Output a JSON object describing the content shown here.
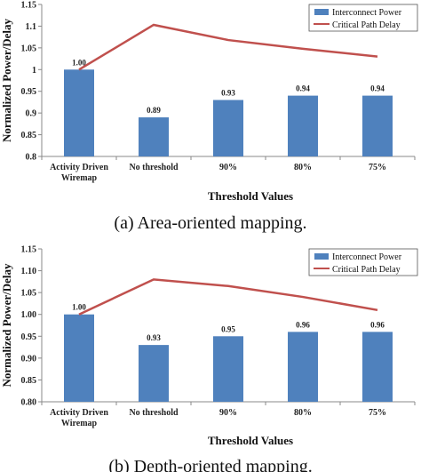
{
  "chart_data": [
    {
      "type": "bar",
      "caption": "(a) Area-oriented mapping.",
      "categories": [
        [
          "Activity Driven",
          "Wiremap"
        ],
        [
          "No threshold"
        ],
        [
          "90%"
        ],
        [
          "80%"
        ],
        [
          "75%"
        ]
      ],
      "series": [
        {
          "name": "Interconnect Power",
          "kind": "bar",
          "color": "#4F81BD",
          "values": [
            1.0,
            0.89,
            0.93,
            0.94,
            0.94
          ],
          "labels": [
            "1.00",
            "0.89",
            "0.93",
            "0.94",
            "0.94"
          ]
        },
        {
          "name": "Critical Path Delay",
          "kind": "line",
          "color": "#C0504D",
          "values": [
            1.0,
            1.103,
            1.068,
            1.048,
            1.03
          ]
        }
      ],
      "xlabel": "Threshold Values",
      "ylabel": "Normalized Power/Delay",
      "ylim": [
        0.8,
        1.15
      ],
      "yticks": [
        "0.8",
        "0.85",
        "0.9",
        "0.95",
        "1",
        "1.05",
        "1.1",
        "1.15"
      ],
      "legend": "top-right",
      "grid": false
    },
    {
      "type": "bar",
      "caption": "(b) Depth-oriented mapping.",
      "categories": [
        [
          "Activity Driven",
          "Wiremap"
        ],
        [
          "No threshold"
        ],
        [
          "90%"
        ],
        [
          "80%"
        ],
        [
          "75%"
        ]
      ],
      "series": [
        {
          "name": "Interconnect Power",
          "kind": "bar",
          "color": "#4F81BD",
          "values": [
            1.0,
            0.93,
            0.95,
            0.96,
            0.96
          ],
          "labels": [
            "1.00",
            "0.93",
            "0.95",
            "0.96",
            "0.96"
          ]
        },
        {
          "name": "Critical Path Delay",
          "kind": "line",
          "color": "#C0504D",
          "values": [
            1.0,
            1.08,
            1.065,
            1.04,
            1.01
          ]
        }
      ],
      "xlabel": "Threshold Values",
      "ylabel": "Normalized Power/Delay",
      "ylim": [
        0.8,
        1.15
      ],
      "yticks": [
        "0.80",
        "0.85",
        "0.90",
        "0.95",
        "1.00",
        "1.05",
        "1.10",
        "1.15"
      ],
      "legend": "top-right",
      "grid": false
    }
  ]
}
